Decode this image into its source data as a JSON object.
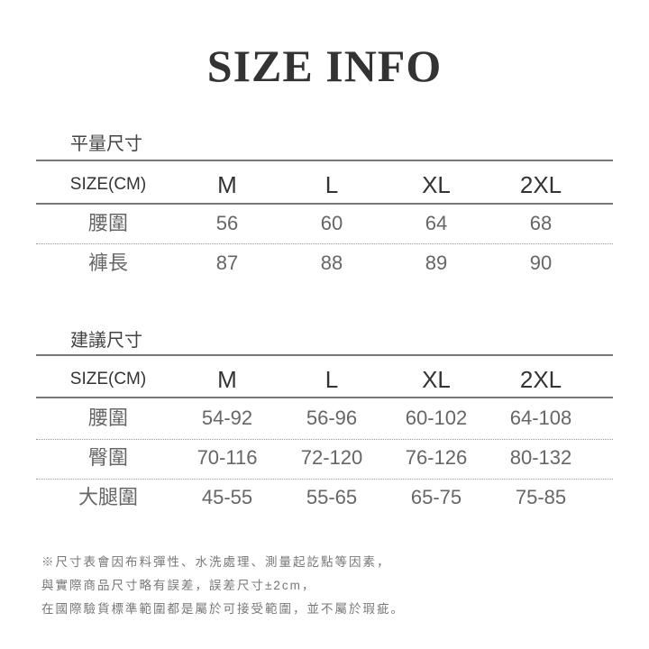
{
  "title": "SIZE INFO",
  "sizes": [
    "SIZE(CM)",
    "M",
    "L",
    "XL",
    "2XL"
  ],
  "flat": {
    "title": "平量尺寸",
    "rows": [
      [
        "腰圍",
        "56",
        "60",
        "64",
        "68"
      ],
      [
        "褲長",
        "87",
        "88",
        "89",
        "90"
      ]
    ]
  },
  "suggested": {
    "title": "建議尺寸",
    "rows": [
      [
        "腰圍",
        "54-92",
        "56-96",
        "60-102",
        "64-108"
      ],
      [
        "臀圍",
        "70-116",
        "72-120",
        "76-126",
        "80-132"
      ],
      [
        "大腿圍",
        "45-55",
        "55-65",
        "65-75",
        "75-85"
      ]
    ]
  },
  "notes": [
    "※尺寸表會因布料彈性、水洗處理、測量起訖點等因素，",
    "與實際商品尺寸略有誤差，誤差尺寸±2cm，",
    "在國際驗貨標準範圍都是屬於可接受範圍，並不屬於瑕疵。"
  ]
}
